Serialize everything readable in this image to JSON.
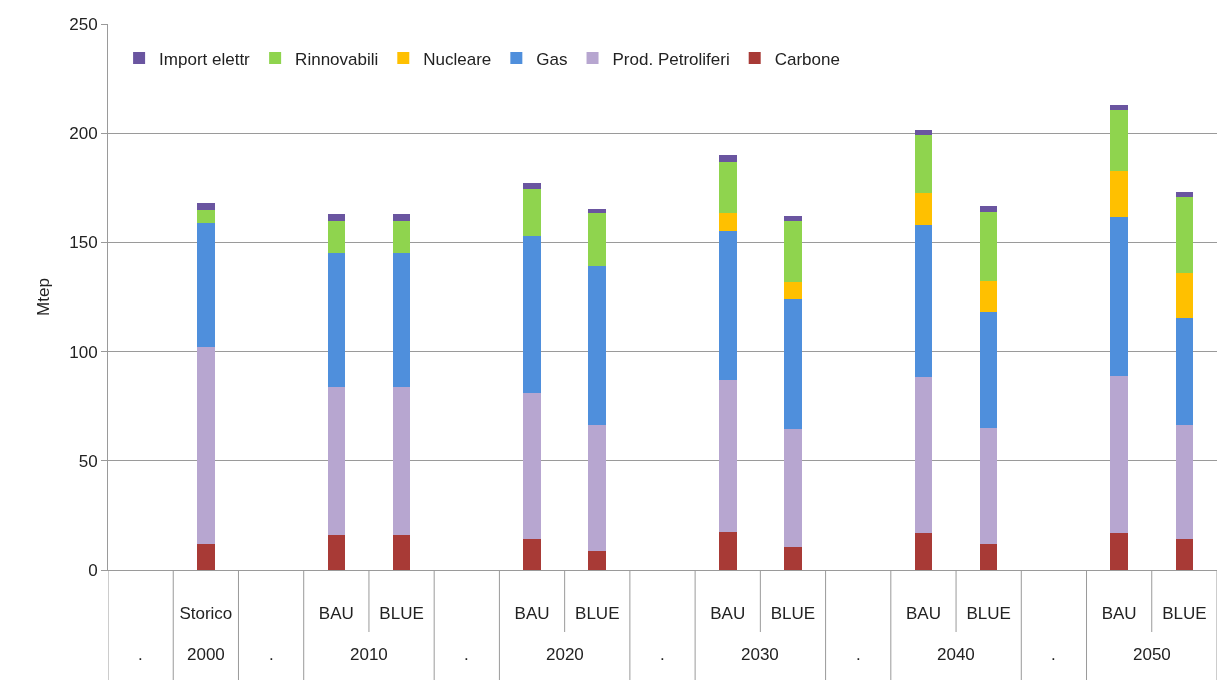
{
  "chart_data": {
    "type": "bar",
    "stacked": true,
    "ylabel": "Mtep",
    "categories": [
      null,
      "Storico",
      null,
      "BAU",
      "BLUE",
      null,
      "BAU",
      "BLUE",
      null,
      "BAU",
      "BLUE",
      null,
      "BAU",
      "BLUE",
      null,
      "BAU",
      "BLUE"
    ],
    "annotations": [
      ".",
      "2000",
      ".",
      "2010",
      ".",
      "2020",
      ".",
      "2030",
      ".",
      "2040",
      ".",
      "2050"
    ],
    "series": [
      {
        "name": "Carbone",
        "color": "#a83a36",
        "values": [
          null,
          12,
          null,
          16,
          16,
          null,
          14,
          8.5,
          null,
          17.5,
          10.5,
          null,
          17,
          12,
          null,
          17,
          14
        ]
      },
      {
        "name": "Prod. Petroliferi",
        "color": "#b7a6d0",
        "values": [
          null,
          90,
          null,
          68,
          68,
          null,
          67,
          58,
          null,
          69.5,
          54,
          null,
          71.5,
          53,
          null,
          72,
          52.5
        ]
      },
      {
        "name": "Gas",
        "color": "#4f8fdc",
        "values": [
          null,
          57,
          null,
          61,
          61,
          null,
          72,
          72.5,
          null,
          68,
          59.5,
          null,
          69.5,
          53,
          null,
          72.5,
          49
        ]
      },
      {
        "name": "Nucleare",
        "color": "#ffc000",
        "values": [
          null,
          0,
          null,
          0,
          0,
          null,
          0,
          0,
          null,
          8.5,
          8,
          null,
          14.5,
          14.5,
          null,
          21,
          20.5
        ]
      },
      {
        "name": "Rinnovabili",
        "color": "#8fd44e",
        "values": [
          null,
          6,
          null,
          15,
          15,
          null,
          21.5,
          24.5,
          null,
          23.5,
          28,
          null,
          26.5,
          31.5,
          null,
          28,
          35
        ]
      },
      {
        "name": "Import elettr",
        "color": "#6a55a0",
        "values": [
          null,
          3,
          null,
          3,
          3,
          null,
          2.5,
          2,
          null,
          3,
          2,
          null,
          2.5,
          2.5,
          null,
          2.5,
          2
        ]
      }
    ],
    "ylim": [
      0,
      250
    ],
    "yticks": [
      0,
      50,
      100,
      150,
      200,
      250
    ],
    "grid": "y",
    "legend": "top"
  }
}
